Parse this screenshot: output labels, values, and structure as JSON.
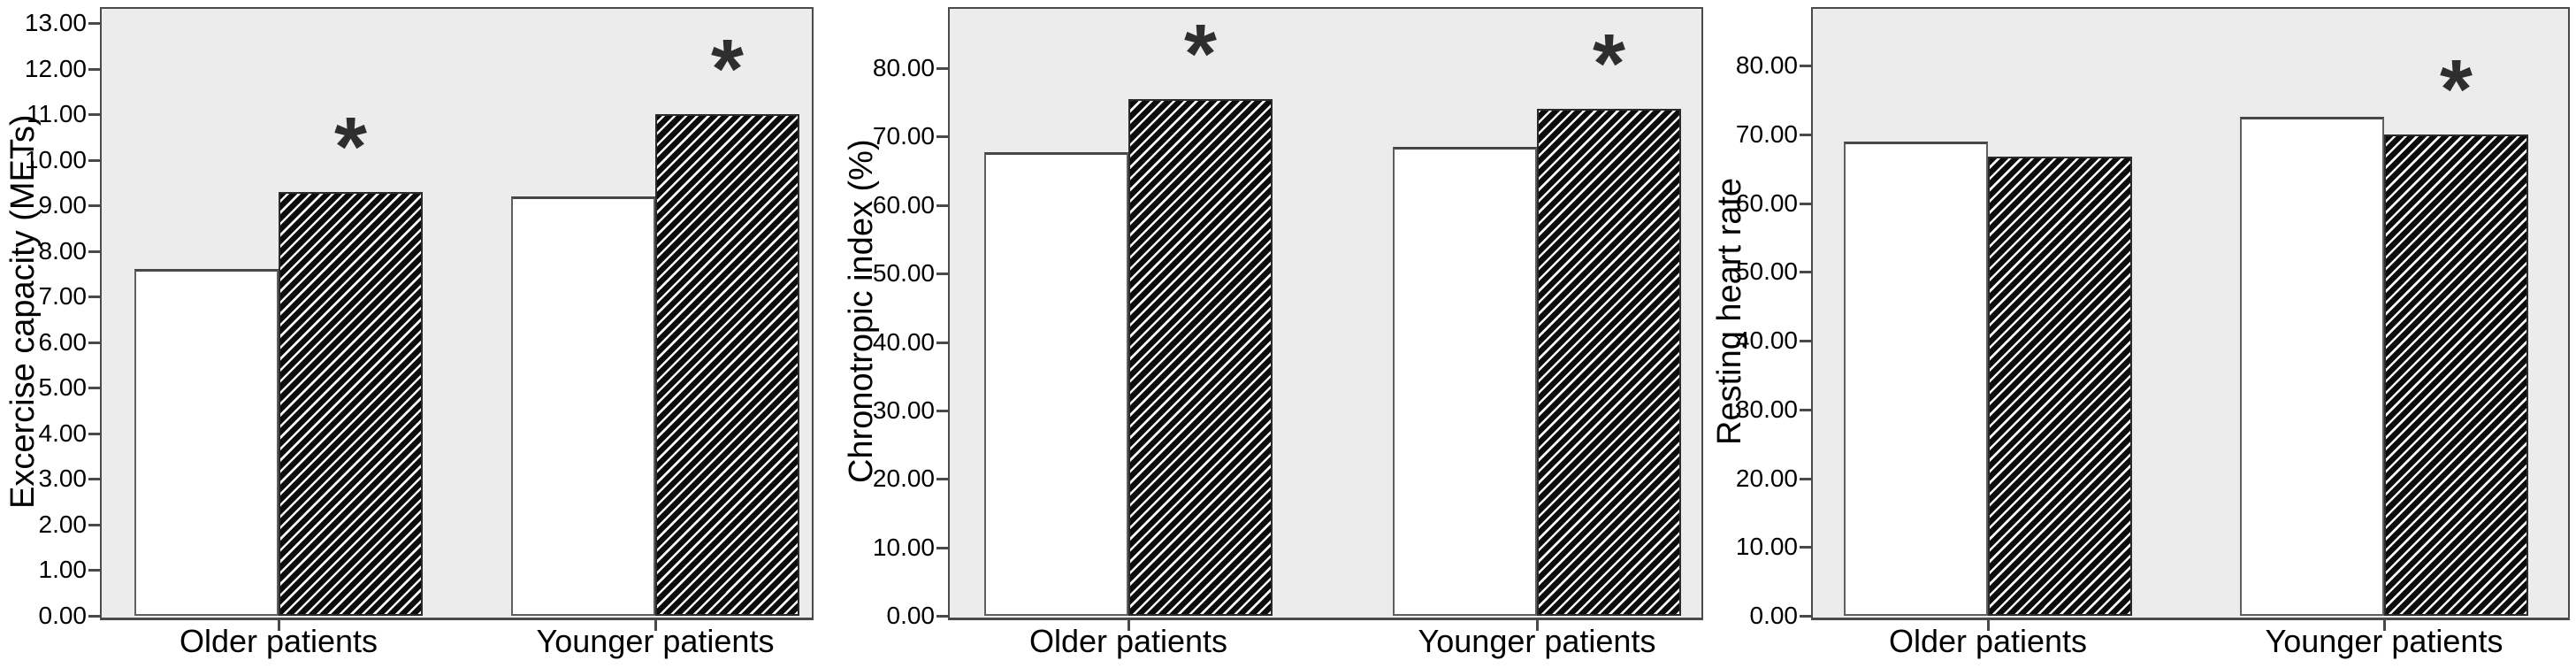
{
  "figure": {
    "colors": {
      "plot_bg": "#ececec",
      "axis": "#4a4a4a",
      "open_bar_fill": "#ffffff",
      "open_bar_border": "#5f5f5f",
      "hatch_dark": "#0c0c0c",
      "hatch_light": "#f8f8f8",
      "text": "#000000"
    },
    "significance_marker": "*"
  },
  "chart_data": [
    {
      "type": "bar",
      "title": "",
      "xlabel": "",
      "ylabel": "Excercise capacity (METs)",
      "categories": [
        "Older patients",
        "Younger patients"
      ],
      "series": [
        {
          "name": "open-bar",
          "values": [
            7.6,
            9.2
          ]
        },
        {
          "name": "hatched-bar",
          "values": [
            9.3,
            11.0
          ]
        }
      ],
      "significance_on_hatched": [
        true,
        true
      ],
      "ylim": [
        0,
        13
      ],
      "ytick_step": 1,
      "ytick_labels": [
        "0.00",
        "1.00",
        "2.00",
        "3.00",
        "4.00",
        "5.00",
        "6.00",
        "7.00",
        "8.00",
        "9.00",
        "10.00",
        "11.00",
        "12.00",
        "13.00"
      ],
      "grid": false,
      "legend": "none"
    },
    {
      "type": "bar",
      "title": "",
      "xlabel": "",
      "ylabel": "Chronotropic index (%)",
      "categories": [
        "Older patients",
        "Younger patients"
      ],
      "series": [
        {
          "name": "open-bar",
          "values": [
            67.7,
            68.5
          ]
        },
        {
          "name": "hatched-bar",
          "values": [
            75.5,
            74.0
          ]
        }
      ],
      "significance_on_hatched": [
        true,
        true
      ],
      "ylim": [
        0,
        80
      ],
      "ytick_step": 10,
      "ytick_labels": [
        "0.00",
        "10.00",
        "20.00",
        "30.00",
        "40.00",
        "50.00",
        "60.00",
        "70.00",
        "80.00"
      ],
      "grid": false,
      "legend": "none"
    },
    {
      "type": "bar",
      "title": "",
      "xlabel": "",
      "ylabel": "Resting heart rate",
      "categories": [
        "Older patients",
        "Younger patients"
      ],
      "series": [
        {
          "name": "open-bar",
          "values": [
            69.0,
            72.5
          ]
        },
        {
          "name": "hatched-bar",
          "values": [
            66.8,
            70.0
          ]
        }
      ],
      "significance_on_hatched": [
        false,
        true
      ],
      "ylim": [
        0,
        80
      ],
      "ytick_step": 10,
      "ytick_labels": [
        "0.00",
        "10.00",
        "20.00",
        "30.00",
        "40.00",
        "50.00",
        "60.00",
        "70.00",
        "80.00"
      ],
      "grid": false,
      "legend": "none"
    }
  ]
}
